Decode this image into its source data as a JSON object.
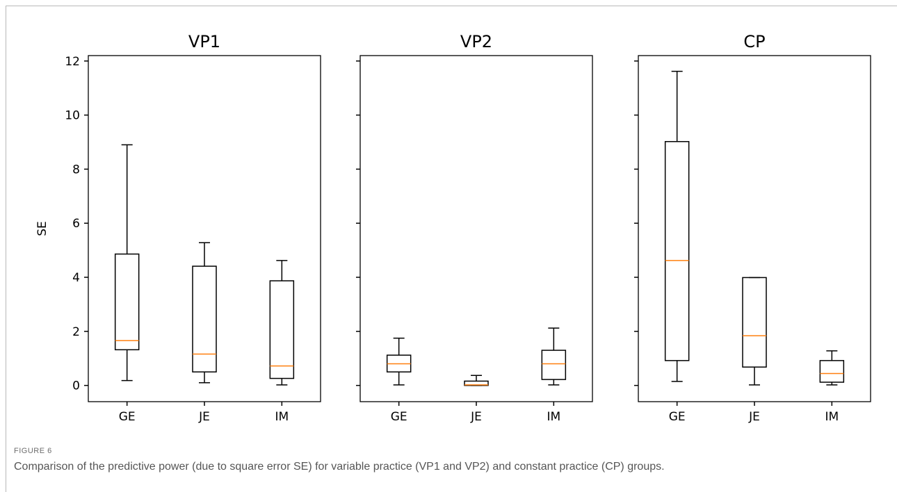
{
  "figure": {
    "label": "FIGURE 6",
    "caption": "Comparison of the predictive power (due to square error SE) for variable practice (VP1 and VP2) and constant practice (CP) groups."
  },
  "colors": {
    "box": "#000000",
    "median": "#ff7f0e",
    "frame": "#b8b8b8"
  },
  "chart_data": {
    "type": "boxplot",
    "shared_y": true,
    "ylabel": "SE",
    "ylim": [
      -0.6,
      12.2
    ],
    "yticks": [
      0,
      2,
      4,
      6,
      8,
      10,
      12
    ],
    "categories": [
      "GE",
      "JE",
      "IM"
    ],
    "panels": [
      {
        "title": "VP1",
        "boxes": [
          {
            "category": "GE",
            "whisker_low": 0.18,
            "q1": 1.32,
            "median": 1.66,
            "q3": 4.86,
            "whisker_high": 8.9
          },
          {
            "category": "JE",
            "whisker_low": 0.1,
            "q1": 0.5,
            "median": 1.16,
            "q3": 4.41,
            "whisker_high": 5.28
          },
          {
            "category": "IM",
            "whisker_low": 0.02,
            "q1": 0.26,
            "median": 0.72,
            "q3": 3.87,
            "whisker_high": 4.62
          }
        ]
      },
      {
        "title": "VP2",
        "boxes": [
          {
            "category": "GE",
            "whisker_low": 0.02,
            "q1": 0.5,
            "median": 0.8,
            "q3": 1.12,
            "whisker_high": 1.75
          },
          {
            "category": "JE",
            "whisker_low": 0.0,
            "q1": 0.0,
            "median": 0.02,
            "q3": 0.16,
            "whisker_high": 0.37
          },
          {
            "category": "IM",
            "whisker_low": 0.02,
            "q1": 0.22,
            "median": 0.8,
            "q3": 1.3,
            "whisker_high": 2.12
          }
        ]
      },
      {
        "title": "CP",
        "boxes": [
          {
            "category": "GE",
            "whisker_low": 0.15,
            "q1": 0.92,
            "median": 4.62,
            "q3": 9.02,
            "whisker_high": 11.62
          },
          {
            "category": "JE",
            "whisker_low": 0.02,
            "q1": 0.68,
            "median": 1.84,
            "q3": 3.99,
            "whisker_high": 3.99
          },
          {
            "category": "IM",
            "whisker_low": 0.02,
            "q1": 0.12,
            "median": 0.44,
            "q3": 0.92,
            "whisker_high": 1.28
          }
        ]
      }
    ]
  }
}
